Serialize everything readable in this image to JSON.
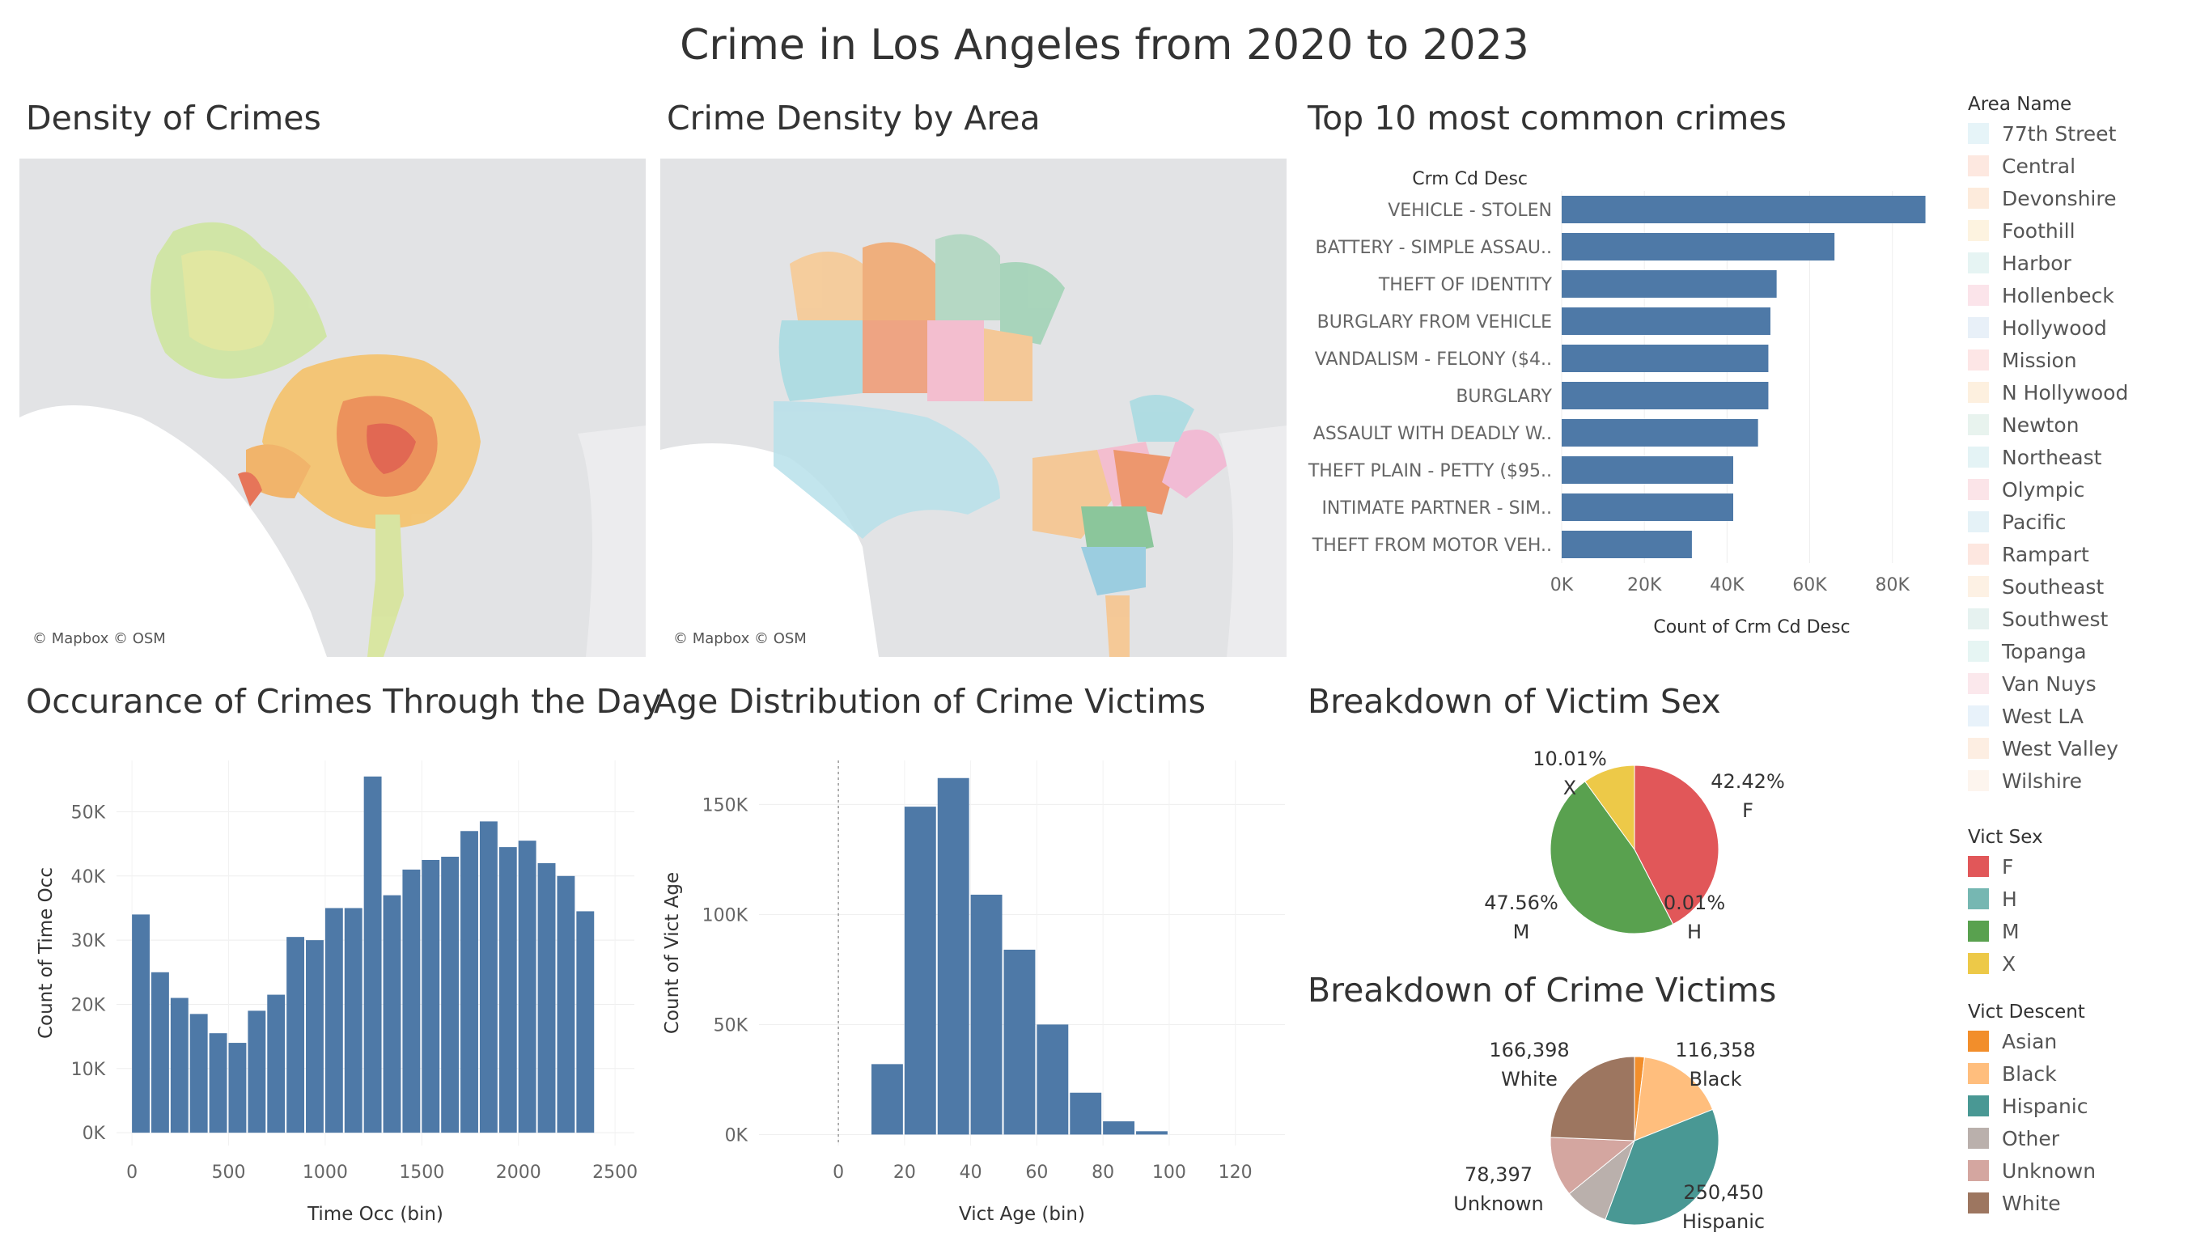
{
  "title": "Crime in Los Angeles from 2020 to 2023",
  "panels": {
    "density": "Density of Crimes",
    "area_density": "Crime Density by Area",
    "top10": "Top 10 most common crimes",
    "time_day": "Occurance of Crimes Through the Day",
    "age": "Age Distribution of Crime Victims",
    "sex": "Breakdown of Victim Sex",
    "descent": "Breakdown of Crime Victims"
  },
  "map_attribution": "© Mapbox © OSM",
  "legends": {
    "area": {
      "title": "Area Name",
      "items": [
        "77th Street",
        "Central",
        "Devonshire",
        "Foothill",
        "Harbor",
        "Hollenbeck",
        "Hollywood",
        "Mission",
        "N Hollywood",
        "Newton",
        "Northeast",
        "Olympic",
        "Pacific",
        "Rampart",
        "Southeast",
        "Southwest",
        "Topanga",
        "Van Nuys",
        "West LA",
        "West Valley",
        "Wilshire"
      ],
      "colors": [
        "#e6f4f8",
        "#fde8e0",
        "#fdebdc",
        "#fdf3e0",
        "#e6f4f3",
        "#fbe4ea",
        "#e8f0f8",
        "#fde6e6",
        "#fdf0df",
        "#e8f3ee",
        "#e4f3f5",
        "#fbe4e8",
        "#e5f2f7",
        "#fde7e0",
        "#fdf1e4",
        "#e6f2f0",
        "#e6f5f3",
        "#fbe8ec",
        "#e8f2fa",
        "#fdeee2",
        "#fdf5ee"
      ]
    },
    "sex": {
      "title": "Vict Sex",
      "items": [
        "F",
        "H",
        "M",
        "X"
      ],
      "colors": [
        "#e15759",
        "#76b7b2",
        "#59a14f",
        "#edc948"
      ]
    },
    "descent": {
      "title": "Vict Descent",
      "items": [
        "Asian",
        "Black",
        "Hispanic",
        "Other",
        "Unknown",
        "White"
      ],
      "colors": [
        "#f28e2b",
        "#ffbe7d",
        "#499894",
        "#bab0ac",
        "#d4a6a0",
        "#9d7660"
      ]
    }
  },
  "chart_data": [
    {
      "id": "top10",
      "type": "bar",
      "orientation": "horizontal",
      "title": "Top 10 most common crimes",
      "dimension_label": "Crm Cd Desc",
      "xlabel": "Count of Crm Cd Desc",
      "categories": [
        "VEHICLE - STOLEN",
        "BATTERY - SIMPLE ASSAU..",
        "THEFT OF IDENTITY",
        "BURGLARY FROM VEHICLE",
        "VANDALISM - FELONY ($4..",
        "BURGLARY",
        "ASSAULT WITH DEADLY W..",
        "THEFT PLAIN - PETTY ($95..",
        "INTIMATE PARTNER - SIM..",
        "THEFT FROM MOTOR VEH.."
      ],
      "values": [
        88000,
        66000,
        52000,
        50500,
        50000,
        50000,
        47500,
        41500,
        41500,
        31500
      ],
      "xlim": [
        0,
        92000
      ],
      "xticks": [
        0,
        20000,
        40000,
        60000,
        80000
      ],
      "xtick_labels": [
        "0K",
        "20K",
        "40K",
        "60K",
        "80K"
      ],
      "color": "#4e79a7"
    },
    {
      "id": "time",
      "type": "bar",
      "title": "Occurance of Crimes Through the Day",
      "xlabel": "Time Occ (bin)",
      "ylabel": "Count of Time Occ",
      "bin_width": 100,
      "x": [
        0,
        100,
        200,
        300,
        400,
        500,
        600,
        700,
        800,
        900,
        1000,
        1100,
        1200,
        1300,
        1400,
        1500,
        1600,
        1700,
        1800,
        1900,
        2000,
        2100,
        2200,
        2300
      ],
      "values": [
        34000,
        25000,
        21000,
        18500,
        15500,
        14000,
        19000,
        21500,
        30500,
        30000,
        35000,
        35000,
        55500,
        37000,
        41000,
        42500,
        43000,
        47000,
        48500,
        44500,
        45500,
        42000,
        40000,
        34500
      ],
      "xlim": [
        -80,
        2600
      ],
      "ylim": [
        -2000,
        58000
      ],
      "xticks": [
        0,
        500,
        1000,
        1500,
        2000,
        2500
      ],
      "xtick_labels": [
        "0",
        "500",
        "1000",
        "1500",
        "2000",
        "2500"
      ],
      "yticks": [
        0,
        10000,
        20000,
        30000,
        40000,
        50000
      ],
      "ytick_labels": [
        "0K",
        "10K",
        "20K",
        "30K",
        "40K",
        "50K"
      ],
      "color": "#4e79a7"
    },
    {
      "id": "age",
      "type": "bar",
      "title": "Age Distribution of Crime Victims",
      "xlabel": "Vict Age (bin)",
      "ylabel": "Count of Vict Age",
      "bin_width": 10,
      "x": [
        10,
        20,
        30,
        40,
        50,
        60,
        70,
        80,
        90
      ],
      "values": [
        32000,
        149000,
        162000,
        109000,
        84000,
        50000,
        19000,
        6000,
        1500
      ],
      "xlim": [
        -24,
        135
      ],
      "ylim": [
        -5000,
        170000
      ],
      "xticks": [
        0,
        20,
        40,
        60,
        80,
        100,
        120
      ],
      "xtick_labels": [
        "0",
        "20",
        "40",
        "60",
        "80",
        "100",
        "120"
      ],
      "yticks": [
        0,
        50000,
        100000,
        150000
      ],
      "ytick_labels": [
        "0K",
        "50K",
        "100K",
        "150K"
      ],
      "color": "#4e79a7"
    },
    {
      "id": "sex",
      "type": "pie",
      "title": "Breakdown of Victim Sex",
      "labels": [
        "F",
        "H",
        "M",
        "X"
      ],
      "values": [
        42.42,
        0.01,
        47.56,
        10.01
      ],
      "value_labels": [
        "42.42%",
        "0.01%",
        "47.56%",
        "10.01%"
      ],
      "colors": [
        "#e15759",
        "#76b7b2",
        "#59a14f",
        "#edc948"
      ]
    },
    {
      "id": "descent",
      "type": "pie",
      "title": "Breakdown of Crime Victims",
      "labels": [
        "Asian",
        "Black",
        "Hispanic",
        "Other",
        "Unknown",
        "White"
      ],
      "values": [
        13000,
        116358,
        250450,
        58000,
        78397,
        166398
      ],
      "value_labels": [
        "",
        "116,358",
        "250,450",
        "",
        "78,397",
        "166,398"
      ],
      "colors": [
        "#f28e2b",
        "#ffbe7d",
        "#499894",
        "#bab0ac",
        "#d4a6a0",
        "#9d7660"
      ]
    }
  ]
}
